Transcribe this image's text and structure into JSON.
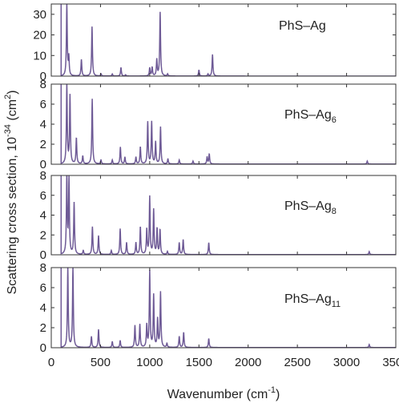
{
  "chart_data": {
    "type": "line",
    "layout": "4 vertically stacked panels with shared x axis",
    "xlabel": "Wavenumber (cm",
    "xlabel_sup": "-1",
    "xlabel_end": ")",
    "ylabel": "Scattering cross section, 10",
    "ylabel_sup": "-34",
    "ylabel_end": " (cm",
    "ylabel_sup2": "2",
    "ylabel_close": ")",
    "xlim": [
      0,
      3500
    ],
    "xticks": [
      0,
      500,
      1000,
      1500,
      2000,
      2500,
      3000,
      3500
    ],
    "xtick_labels": [
      "0",
      "500",
      "1000",
      "1500",
      "2000",
      "2500",
      "3000",
      "3500"
    ],
    "line_color": "#6e5a96",
    "grid": false,
    "legend": "none",
    "panels": [
      {
        "name": "PhS–Ag",
        "label_main": "PhS–Ag",
        "label_sub": "",
        "ylim": [
          0,
          35
        ],
        "yticks": [
          0,
          10,
          20,
          30
        ],
        "ytick_labels": [
          "0",
          "10",
          "20",
          "30"
        ],
        "peaks": [
          [
            158,
            35
          ],
          [
            178,
            9
          ],
          [
            306,
            8
          ],
          [
            414,
            24
          ],
          [
            506,
            1
          ],
          [
            620,
            1
          ],
          [
            708,
            4.2
          ],
          [
            755,
            0.6
          ],
          [
            1000,
            4
          ],
          [
            1025,
            4.2
          ],
          [
            1072,
            8
          ],
          [
            1106,
            31
          ],
          [
            1182,
            1
          ],
          [
            1500,
            3
          ],
          [
            1592,
            1
          ],
          [
            1638,
            10.5
          ]
        ]
      },
      {
        "name": "PhS–Ag6",
        "label_main": "PhS–Ag",
        "label_sub": "6",
        "ylim": [
          0,
          8
        ],
        "yticks": [
          0,
          2,
          4,
          6,
          8
        ],
        "ytick_labels": [
          "0",
          "2",
          "4",
          "6",
          "8"
        ],
        "peaks": [
          [
            158,
            8
          ],
          [
            190,
            6.8
          ],
          [
            255,
            2.6
          ],
          [
            320,
            0.8
          ],
          [
            416,
            6.5
          ],
          [
            505,
            0.4
          ],
          [
            620,
            0.4
          ],
          [
            702,
            1.7
          ],
          [
            748,
            0.7
          ],
          [
            860,
            0.7
          ],
          [
            905,
            1.7
          ],
          [
            980,
            4.2
          ],
          [
            1020,
            4.2
          ],
          [
            1060,
            2.2
          ],
          [
            1110,
            3.7
          ],
          [
            1185,
            0.5
          ],
          [
            1300,
            0.4
          ],
          [
            1440,
            0.3
          ],
          [
            1583,
            0.7
          ],
          [
            1605,
            1.0
          ],
          [
            3210,
            0.3
          ]
        ]
      },
      {
        "name": "PhS–Ag8",
        "label_main": "PhS–Ag",
        "label_sub": "8",
        "ylim": [
          0,
          8
        ],
        "yticks": [
          0,
          2,
          4,
          6,
          8
        ],
        "ytick_labels": [
          "0",
          "2",
          "4",
          "6",
          "8"
        ],
        "peaks": [
          [
            158,
            8
          ],
          [
            180,
            7.5
          ],
          [
            232,
            5.2
          ],
          [
            325,
            0.4
          ],
          [
            418,
            2.8
          ],
          [
            480,
            1.9
          ],
          [
            610,
            0.4
          ],
          [
            700,
            2.6
          ],
          [
            765,
            1.2
          ],
          [
            860,
            1.2
          ],
          [
            905,
            2.8
          ],
          [
            970,
            2.5
          ],
          [
            1000,
            5.8
          ],
          [
            1040,
            4.5
          ],
          [
            1075,
            2.6
          ],
          [
            1105,
            2.5
          ],
          [
            1180,
            0.3
          ],
          [
            1300,
            1.2
          ],
          [
            1340,
            1.5
          ],
          [
            1600,
            1.2
          ],
          [
            3230,
            0.3
          ]
        ]
      },
      {
        "name": "PhS–Ag11",
        "label_main": "PhS–Ag",
        "label_sub": "11",
        "ylim": [
          0,
          8
        ],
        "yticks": [
          0,
          2,
          4,
          6,
          8
        ],
        "ytick_labels": [
          "0",
          "2",
          "4",
          "6",
          "8"
        ],
        "peaks": [
          [
            168,
            8
          ],
          [
            220,
            8
          ],
          [
            408,
            1.1
          ],
          [
            480,
            1.8
          ],
          [
            620,
            0.6
          ],
          [
            700,
            0.7
          ],
          [
            850,
            2.2
          ],
          [
            900,
            2.3
          ],
          [
            970,
            2.2
          ],
          [
            1000,
            7.6
          ],
          [
            1040,
            5.2
          ],
          [
            1080,
            2.8
          ],
          [
            1110,
            5.5
          ],
          [
            1175,
            0.4
          ],
          [
            1300,
            1.1
          ],
          [
            1345,
            1.5
          ],
          [
            1600,
            0.9
          ],
          [
            3230,
            0.3
          ]
        ]
      }
    ]
  }
}
